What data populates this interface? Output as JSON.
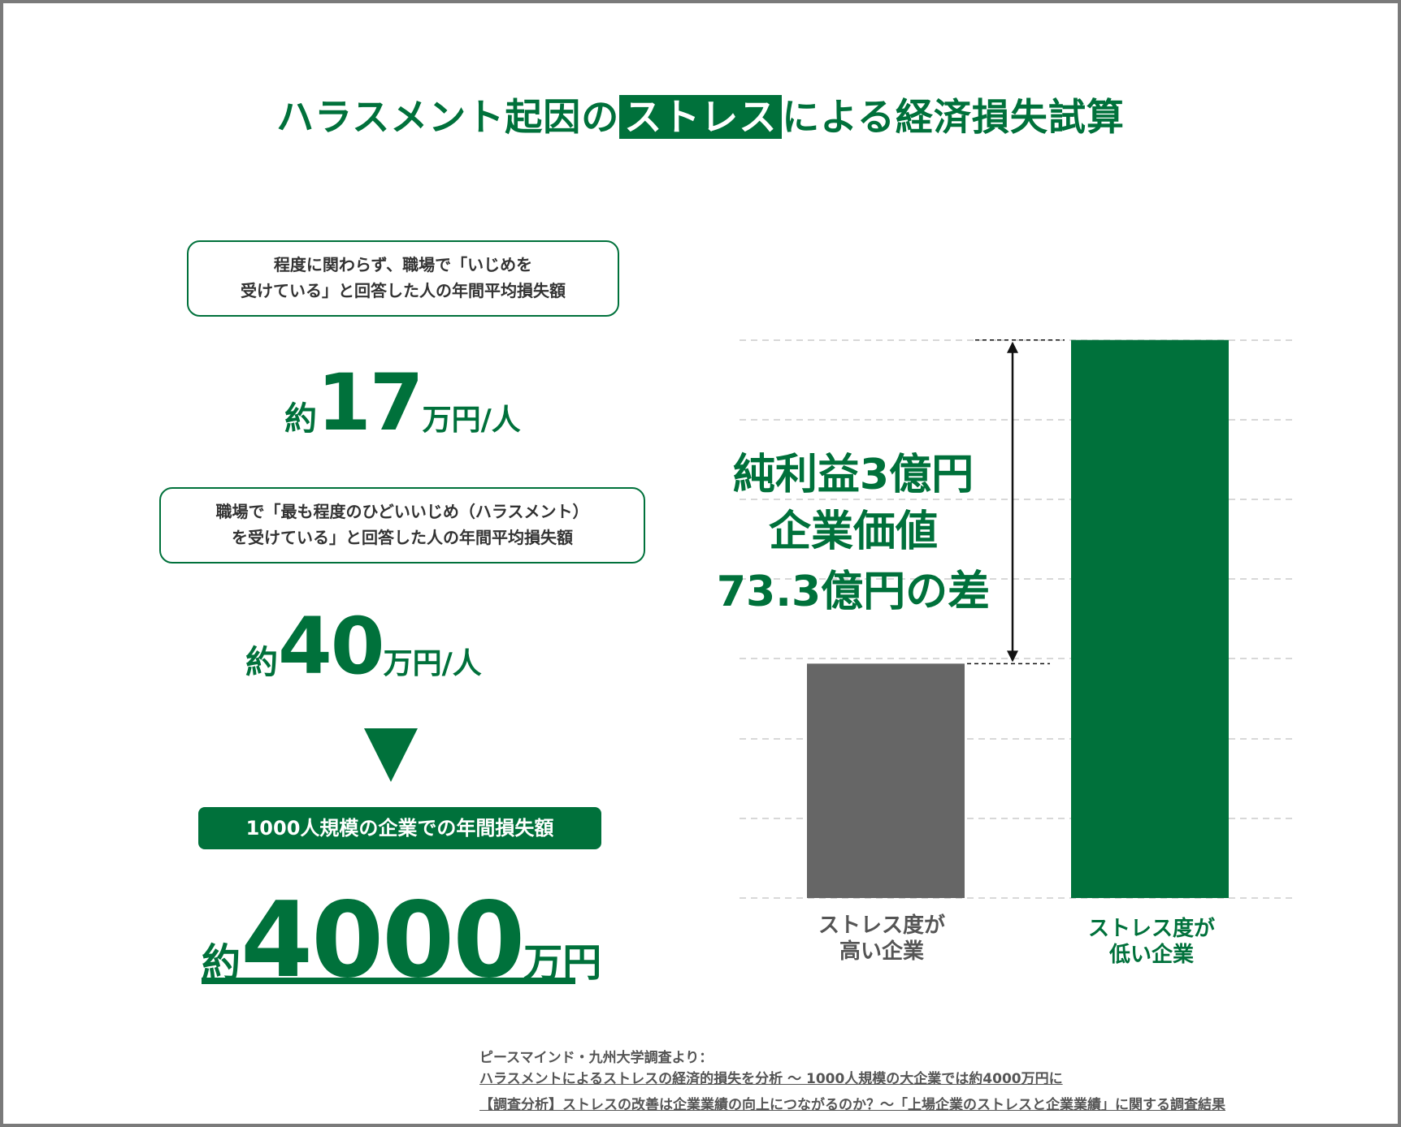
{
  "title": {
    "before": "ハラスメント起因の",
    "highlight": "ストレス",
    "after": "による経済損失試算"
  },
  "stats": {
    "box1": {
      "line1": "程度に関わらず、職場で「いじめを",
      "line2": "受けている」と回答した人の年間平均損失額"
    },
    "value1": {
      "prefix": "約",
      "number": "17",
      "unit": "万円/人"
    },
    "box2": {
      "line1": "職場で「最も程度のひどいいじめ（ハラスメント）",
      "line2": "を受けている」と回答した人の年間平均損失額"
    },
    "value2": {
      "prefix": "約",
      "number": "40",
      "unit": "万円/人"
    },
    "banner": "1000人規模の企業での年間損失額",
    "result": {
      "prefix": "約",
      "number": "4000",
      "unit": "万円"
    }
  },
  "chart_data": {
    "type": "bar",
    "categories": [
      [
        "ストレス度が",
        "高い企業"
      ],
      [
        "ストレス度が",
        "低い企業"
      ]
    ],
    "values": [
      42,
      100
    ],
    "ylim": [
      0,
      110
    ],
    "grid": true,
    "annotation": [
      "純利益3億円",
      "企業価値",
      "73.3億円の差"
    ],
    "colors": [
      "#666666",
      "#00713b"
    ],
    "label_colors": [
      "#555555",
      "#00713b"
    ]
  },
  "source": {
    "line1": "ピースマインド・九州大学調査より：",
    "line2": "ハラスメントによるストレスの経済的損失を分析 〜 1000人規模の大企業では約4000万円に",
    "line3": "【調査分析】ストレスの改善は企業業績の向上につながるのか？〜「上場企業のストレスと企業業績」に関する調査結果"
  },
  "colors": {
    "accent": "#00713b",
    "text": "#333333",
    "gray_bar": "#666666"
  }
}
